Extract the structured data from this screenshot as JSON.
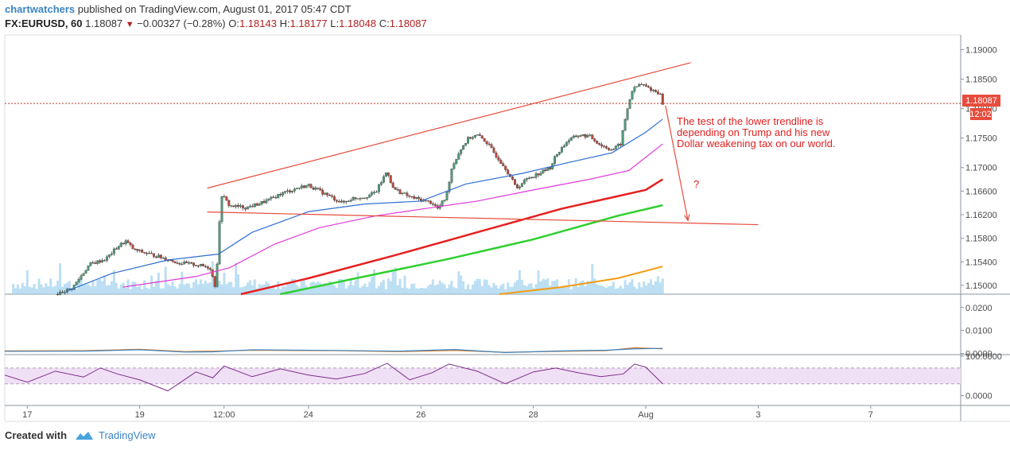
{
  "header": {
    "author": "chartwatchers",
    "published_text": "published on TradingView.com, August 01, 2017 05:47 CDT",
    "symbol": "FX:EURUSD, 60",
    "last": "1.18087",
    "change": "−0.00327 (−0.28%)",
    "o_label": "O:",
    "o": "1.18143",
    "h_label": "H:",
    "h": "1.18177",
    "l_label": "L:",
    "l": "1.18048",
    "c_label": "C:",
    "c": "1.18087"
  },
  "annotation": {
    "lines": [
      "The test of the lower trendline is",
      "depending on Trump and his new",
      "Dollar weakening tax on our world."
    ],
    "question": "?"
  },
  "price_tag": {
    "price": "1.18087",
    "countdown": "12:02"
  },
  "footer": {
    "created_with": "Created with",
    "brand": "TradingView"
  },
  "colors": {
    "up": "#4f9a7a",
    "down": "#b84a3c",
    "trendline": "#e74c3c",
    "ma_blue": "#2f6fd1",
    "ma_magenta": "#e03ad8",
    "ma_red": "#e62020",
    "ma_green": "#2fd02f",
    "ma_orange": "#f39c12",
    "volume": "#a6d4ef",
    "rsi": "#7b2d8e"
  },
  "chart_data": [
    {
      "type": "candlestick",
      "title": "FX:EURUSD, 60",
      "y_ticks": [
        "1.19000",
        "1.18500",
        "1.18000",
        "1.17500",
        "1.17000",
        "1.16600",
        "1.16200",
        "1.15800",
        "1.15400",
        "1.15000"
      ],
      "ylim": [
        1.1485,
        1.1925
      ],
      "x_ticks": [
        "17",
        "19",
        "12:00",
        "24",
        "26",
        "28",
        "Aug",
        "3",
        "7"
      ],
      "x_tick_days": [
        0,
        2,
        3.5,
        5,
        7,
        9,
        11,
        13,
        15
      ],
      "xlim": [
        -0.4,
        16.6
      ],
      "current_price": 1.18087,
      "price_path": [
        [
          0.5,
          1.1485
        ],
        [
          0.8,
          1.1495
        ],
        [
          1.1,
          1.1535
        ],
        [
          1.4,
          1.1545
        ],
        [
          1.6,
          1.1565
        ],
        [
          1.75,
          1.1575
        ],
        [
          1.9,
          1.156
        ],
        [
          2.1,
          1.1555
        ],
        [
          2.4,
          1.1547
        ],
        [
          2.7,
          1.1538
        ],
        [
          3.0,
          1.1535
        ],
        [
          3.25,
          1.153
        ],
        [
          3.35,
          1.1495
        ],
        [
          3.45,
          1.1655
        ],
        [
          3.6,
          1.1635
        ],
        [
          3.9,
          1.1632
        ],
        [
          4.1,
          1.1638
        ],
        [
          4.3,
          1.1645
        ],
        [
          4.5,
          1.1655
        ],
        [
          4.8,
          1.1665
        ],
        [
          5.0,
          1.167
        ],
        [
          5.2,
          1.166
        ],
        [
          5.4,
          1.165
        ],
        [
          5.6,
          1.164
        ],
        [
          5.8,
          1.1648
        ],
        [
          6.0,
          1.165
        ],
        [
          6.2,
          1.1658
        ],
        [
          6.4,
          1.1695
        ],
        [
          6.5,
          1.1665
        ],
        [
          6.8,
          1.165
        ],
        [
          7.0,
          1.1645
        ],
        [
          7.2,
          1.164
        ],
        [
          7.3,
          1.163
        ],
        [
          7.45,
          1.165
        ],
        [
          7.55,
          1.17
        ],
        [
          7.7,
          1.173
        ],
        [
          7.85,
          1.175
        ],
        [
          8.0,
          1.1755
        ],
        [
          8.15,
          1.1745
        ],
        [
          8.3,
          1.1725
        ],
        [
          8.5,
          1.17
        ],
        [
          8.7,
          1.1665
        ],
        [
          8.9,
          1.1682
        ],
        [
          9.1,
          1.169
        ],
        [
          9.3,
          1.17
        ],
        [
          9.4,
          1.172
        ],
        [
          9.6,
          1.1745
        ],
        [
          9.8,
          1.1755
        ],
        [
          10.0,
          1.1753
        ],
        [
          10.2,
          1.1738
        ],
        [
          10.4,
          1.173
        ],
        [
          10.55,
          1.174
        ],
        [
          10.65,
          1.179
        ],
        [
          10.75,
          1.183
        ],
        [
          10.9,
          1.1842
        ],
        [
          11.05,
          1.1835
        ],
        [
          11.15,
          1.183
        ],
        [
          11.25,
          1.1826
        ],
        [
          11.3,
          1.18087
        ]
      ],
      "moving_averages": [
        {
          "color": "ma_blue",
          "points": [
            [
              0.7,
              1.149
            ],
            [
              1.5,
              1.152
            ],
            [
              2.5,
              1.1543
            ],
            [
              3.4,
              1.1553
            ],
            [
              4.0,
              1.159
            ],
            [
              5.0,
              1.1625
            ],
            [
              6.0,
              1.1638
            ],
            [
              7.0,
              1.1643
            ],
            [
              7.8,
              1.1672
            ],
            [
              8.8,
              1.169
            ],
            [
              9.6,
              1.1708
            ],
            [
              10.4,
              1.1725
            ],
            [
              11.0,
              1.176
            ],
            [
              11.3,
              1.1782
            ]
          ]
        },
        {
          "color": "ma_magenta",
          "points": [
            [
              1.7,
              1.1497
            ],
            [
              3.0,
              1.1515
            ],
            [
              3.6,
              1.153
            ],
            [
              4.4,
              1.157
            ],
            [
              5.2,
              1.1598
            ],
            [
              6.2,
              1.1618
            ],
            [
              7.2,
              1.1632
            ],
            [
              8.0,
              1.1643
            ],
            [
              9.0,
              1.1662
            ],
            [
              10.0,
              1.168
            ],
            [
              10.7,
              1.1695
            ],
            [
              11.3,
              1.174
            ]
          ]
        },
        {
          "color": "ma_red",
          "points": [
            [
              3.8,
              1.1485
            ],
            [
              5.0,
              1.1512
            ],
            [
              6.5,
              1.155
            ],
            [
              8.0,
              1.159
            ],
            [
              9.5,
              1.163
            ],
            [
              11.0,
              1.1662
            ],
            [
              11.3,
              1.168
            ]
          ]
        },
        {
          "color": "ma_green",
          "points": [
            [
              4.5,
              1.1485
            ],
            [
              6.0,
              1.1515
            ],
            [
              7.5,
              1.1545
            ],
            [
              9.0,
              1.1578
            ],
            [
              10.5,
              1.1618
            ],
            [
              11.3,
              1.1636
            ]
          ]
        },
        {
          "color": "ma_orange",
          "points": [
            [
              8.4,
              1.1485
            ],
            [
              9.5,
              1.1497
            ],
            [
              10.5,
              1.1512
            ],
            [
              11.3,
              1.1532
            ]
          ]
        }
      ],
      "trendlines": [
        {
          "points": [
            [
              3.2,
              1.1665
            ],
            [
              11.8,
              1.1878
            ]
          ]
        },
        {
          "points": [
            [
              3.2,
              1.16245
            ],
            [
              13.0,
              1.1603
            ]
          ]
        }
      ],
      "projection": {
        "from": [
          11.35,
          1.1805
        ],
        "to": [
          11.75,
          1.161
        ]
      }
    },
    {
      "type": "line",
      "y_ticks": [
        "0.0200",
        "0.0100",
        "0.0000"
      ],
      "ylim": [
        -0.0005,
        0.0258
      ],
      "series": [
        {
          "color": "#e07b22",
          "points": [
            [
              -0.4,
              0.0011
            ],
            [
              1.0,
              0.0012
            ],
            [
              2.0,
              0.0018
            ],
            [
              2.8,
              0.0008
            ],
            [
              3.3,
              0.001
            ],
            [
              4.0,
              0.0014
            ],
            [
              5.5,
              0.0012
            ],
            [
              6.6,
              0.0008
            ],
            [
              7.6,
              0.0013
            ],
            [
              8.5,
              0.0005
            ],
            [
              9.5,
              0.0009
            ],
            [
              10.3,
              0.0012
            ],
            [
              10.8,
              0.0025
            ],
            [
              11.3,
              0.002
            ]
          ]
        },
        {
          "color": "#3a84c4",
          "points": [
            [
              -0.4,
              0.0009
            ],
            [
              1.0,
              0.001
            ],
            [
              2.0,
              0.0016
            ],
            [
              2.8,
              0.0006
            ],
            [
              3.3,
              0.0007
            ],
            [
              4.0,
              0.0016
            ],
            [
              5.5,
              0.0013
            ],
            [
              6.6,
              0.001
            ],
            [
              7.6,
              0.0017
            ],
            [
              8.5,
              0.0004
            ],
            [
              9.5,
              0.0011
            ],
            [
              10.3,
              0.0014
            ],
            [
              10.8,
              0.002
            ],
            [
              11.3,
              0.0022
            ]
          ]
        }
      ]
    },
    {
      "type": "line",
      "y_ticks": [
        "100.0000",
        "0.0000"
      ],
      "ylim": [
        -25,
        104
      ],
      "band": [
        30,
        70
      ],
      "series": [
        {
          "color": "rsi",
          "points": [
            [
              -0.4,
              52
            ],
            [
              0.0,
              34
            ],
            [
              0.5,
              62
            ],
            [
              1.0,
              47
            ],
            [
              1.3,
              70
            ],
            [
              1.6,
              55
            ],
            [
              2.0,
              40
            ],
            [
              2.5,
              12
            ],
            [
              3.0,
              60
            ],
            [
              3.3,
              45
            ],
            [
              3.5,
              75
            ],
            [
              4.0,
              48
            ],
            [
              4.5,
              68
            ],
            [
              5.0,
              52
            ],
            [
              5.5,
              42
            ],
            [
              6.0,
              56
            ],
            [
              6.4,
              82
            ],
            [
              6.8,
              40
            ],
            [
              7.2,
              58
            ],
            [
              7.5,
              80
            ],
            [
              8.0,
              62
            ],
            [
              8.5,
              30
            ],
            [
              9.0,
              60
            ],
            [
              9.4,
              70
            ],
            [
              9.8,
              58
            ],
            [
              10.2,
              48
            ],
            [
              10.6,
              55
            ],
            [
              10.8,
              80
            ],
            [
              11.0,
              72
            ],
            [
              11.3,
              30
            ]
          ]
        }
      ]
    }
  ]
}
